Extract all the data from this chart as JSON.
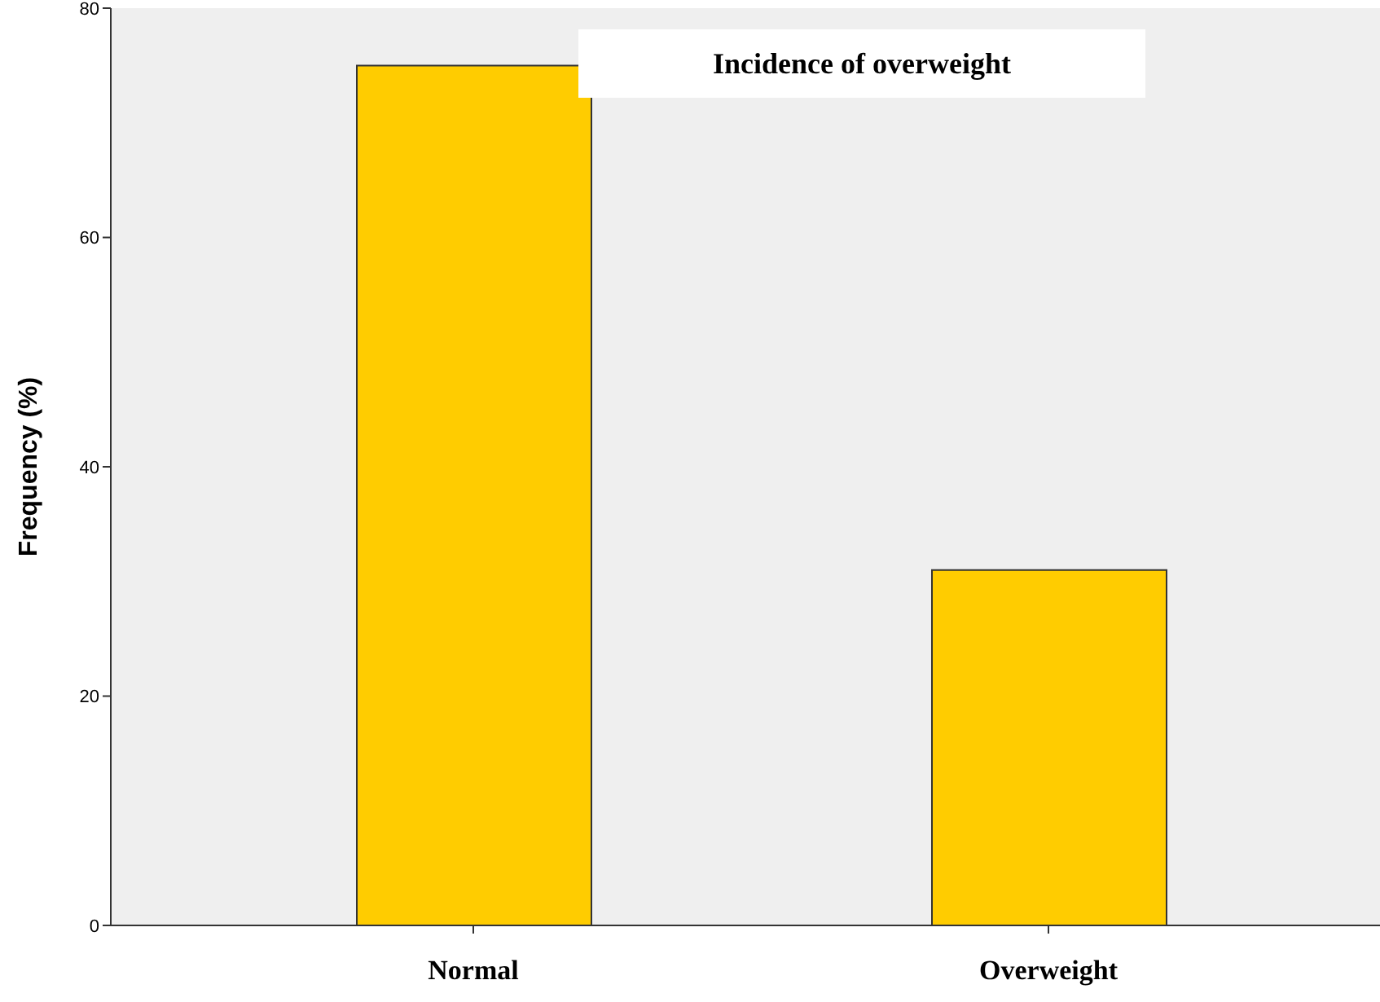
{
  "chart_data": {
    "type": "bar",
    "title": "Incidence of overweight",
    "ylabel": "Frequency (%)",
    "categories": [
      "Normal",
      "Overweight"
    ],
    "values": [
      75,
      31
    ],
    "color": "#ffcc00",
    "ylim": [
      0,
      80
    ],
    "yticks": [
      0,
      20,
      40,
      60,
      80
    ]
  }
}
